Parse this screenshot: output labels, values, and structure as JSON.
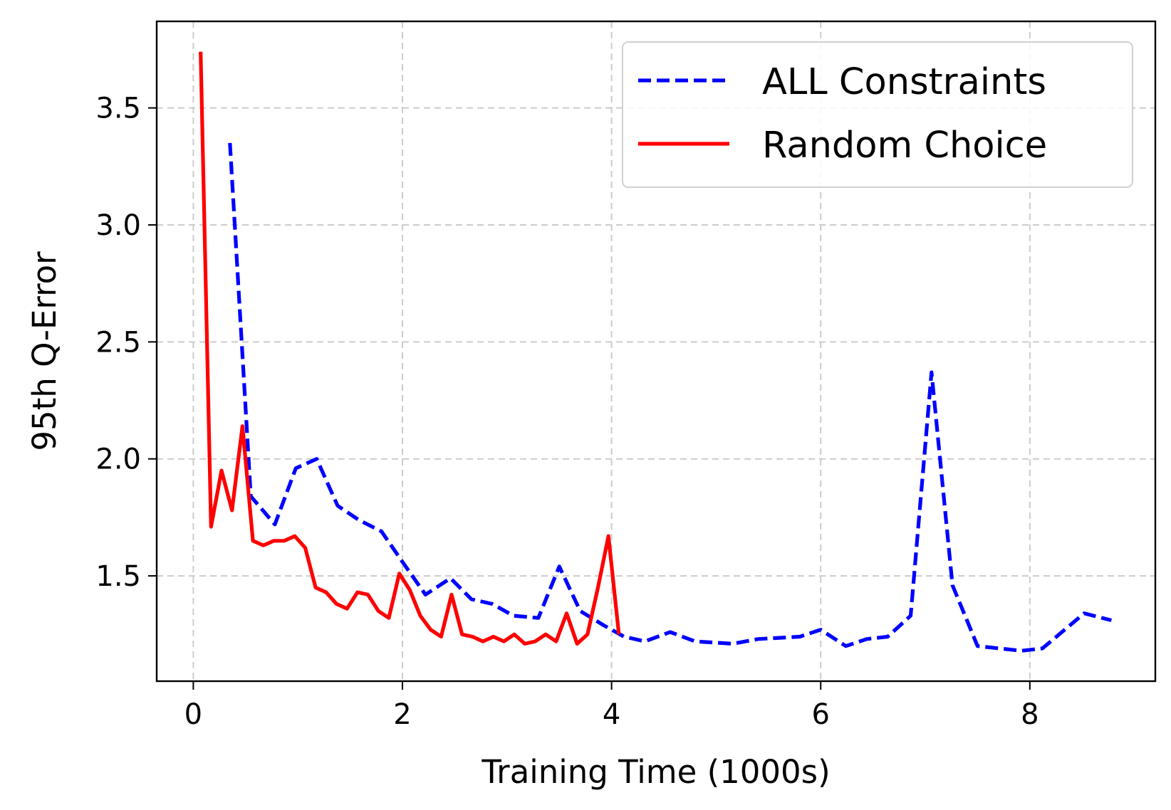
{
  "chart_data": {
    "type": "line",
    "title": "",
    "xlabel": "Training Time (1000s)",
    "ylabel": "95th Q-Error",
    "xlim": [
      -0.35,
      9.2
    ],
    "ylim": [
      1.05,
      3.87
    ],
    "xticks": [
      0,
      2,
      4,
      6,
      8
    ],
    "yticks": [
      1.5,
      2.0,
      2.5,
      3.0,
      3.5
    ],
    "xtick_labels": [
      "0",
      "2",
      "4",
      "6",
      "8"
    ],
    "ytick_labels": [
      "1.5",
      "2.0",
      "2.5",
      "3.0",
      "3.5"
    ],
    "grid": true,
    "legend_position": "top-right",
    "series": [
      {
        "name": "ALL Constraints",
        "color": "#0000ff",
        "style": "dashed",
        "x": [
          0.35,
          0.55,
          0.78,
          0.98,
          1.18,
          1.38,
          1.58,
          1.8,
          2.0,
          2.22,
          2.46,
          2.66,
          2.86,
          3.06,
          3.3,
          3.5,
          3.7,
          3.92,
          4.12,
          4.32,
          4.56,
          4.8,
          5.16,
          5.4,
          5.8,
          6.0,
          6.24,
          6.44,
          6.64,
          6.86,
          7.06,
          7.26,
          7.5,
          7.92,
          8.12,
          8.52,
          8.78
        ],
        "y": [
          3.35,
          1.84,
          1.72,
          1.96,
          2.0,
          1.8,
          1.74,
          1.69,
          1.56,
          1.42,
          1.49,
          1.4,
          1.38,
          1.33,
          1.32,
          1.54,
          1.35,
          1.29,
          1.24,
          1.22,
          1.26,
          1.22,
          1.21,
          1.23,
          1.24,
          1.27,
          1.2,
          1.23,
          1.24,
          1.33,
          2.37,
          1.46,
          1.2,
          1.18,
          1.19,
          1.34,
          1.31
        ]
      },
      {
        "name": "Random Choice",
        "color": "#ff0000",
        "style": "solid",
        "x": [
          0.07,
          0.17,
          0.27,
          0.37,
          0.47,
          0.57,
          0.67,
          0.77,
          0.87,
          0.97,
          1.07,
          1.17,
          1.27,
          1.37,
          1.47,
          1.57,
          1.67,
          1.77,
          1.87,
          1.97,
          2.07,
          2.17,
          2.27,
          2.37,
          2.47,
          2.57,
          2.67,
          2.77,
          2.87,
          2.97,
          3.07,
          3.17,
          3.27,
          3.37,
          3.47,
          3.57,
          3.67,
          3.77,
          3.87,
          3.97,
          4.07
        ],
        "y": [
          3.74,
          1.71,
          1.95,
          1.78,
          2.14,
          1.65,
          1.63,
          1.65,
          1.65,
          1.67,
          1.62,
          1.45,
          1.43,
          1.38,
          1.36,
          1.43,
          1.42,
          1.35,
          1.32,
          1.51,
          1.44,
          1.33,
          1.27,
          1.24,
          1.42,
          1.25,
          1.24,
          1.22,
          1.24,
          1.22,
          1.25,
          1.21,
          1.22,
          1.25,
          1.22,
          1.34,
          1.21,
          1.25,
          1.45,
          1.67,
          1.25
        ]
      }
    ]
  }
}
